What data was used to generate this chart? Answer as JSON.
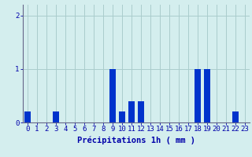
{
  "hours": [
    0,
    1,
    2,
    3,
    4,
    5,
    6,
    7,
    8,
    9,
    10,
    11,
    12,
    13,
    14,
    15,
    16,
    17,
    18,
    19,
    20,
    21,
    22,
    23
  ],
  "values": [
    0.2,
    0.0,
    0.0,
    0.2,
    0.0,
    0.0,
    0.0,
    0.0,
    0.0,
    1.0,
    0.2,
    0.4,
    0.4,
    0.0,
    0.0,
    0.0,
    0.0,
    0.0,
    1.0,
    1.0,
    0.0,
    0.0,
    0.2,
    0.0
  ],
  "bar_color": "#0033cc",
  "background_color": "#d4eeee",
  "grid_color": "#aacccc",
  "axis_color": "#666688",
  "text_color": "#0000aa",
  "xlabel": "Précipitations 1h ( mm )",
  "ylim": [
    0,
    2.2
  ],
  "yticks": [
    0,
    1,
    2
  ],
  "xlabel_fontsize": 7.5,
  "tick_fontsize": 6.5
}
